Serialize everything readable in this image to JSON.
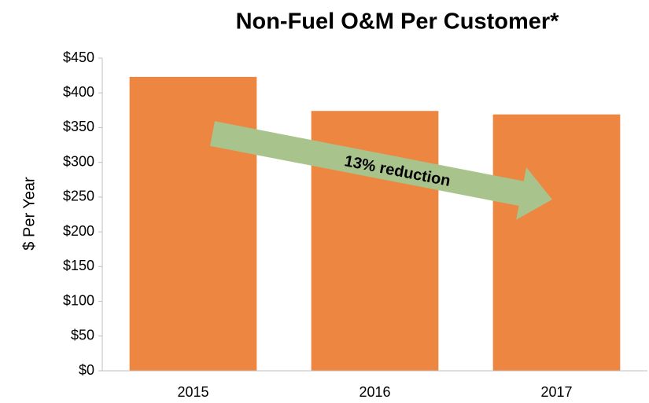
{
  "chart_data": {
    "type": "bar",
    "title": "Non-Fuel O&M Per Customer*",
    "ylabel": "$ Per Year",
    "categories": [
      "2015",
      "2016",
      "2017"
    ],
    "values": [
      423,
      374,
      369
    ],
    "color": "#ED8641",
    "ylim": [
      0,
      450
    ],
    "yticks": [
      {
        "value": 0,
        "label": "$0"
      },
      {
        "value": 50,
        "label": "$50"
      },
      {
        "value": 100,
        "label": "$100"
      },
      {
        "value": 150,
        "label": "$150"
      },
      {
        "value": 200,
        "label": "$200"
      },
      {
        "value": 250,
        "label": "$250"
      },
      {
        "value": 300,
        "label": "$300"
      },
      {
        "value": 350,
        "label": "$350"
      },
      {
        "value": 400,
        "label": "$400"
      },
      {
        "value": 450,
        "label": "$450"
      }
    ],
    "grid": false,
    "annotation": "13% reduction"
  }
}
